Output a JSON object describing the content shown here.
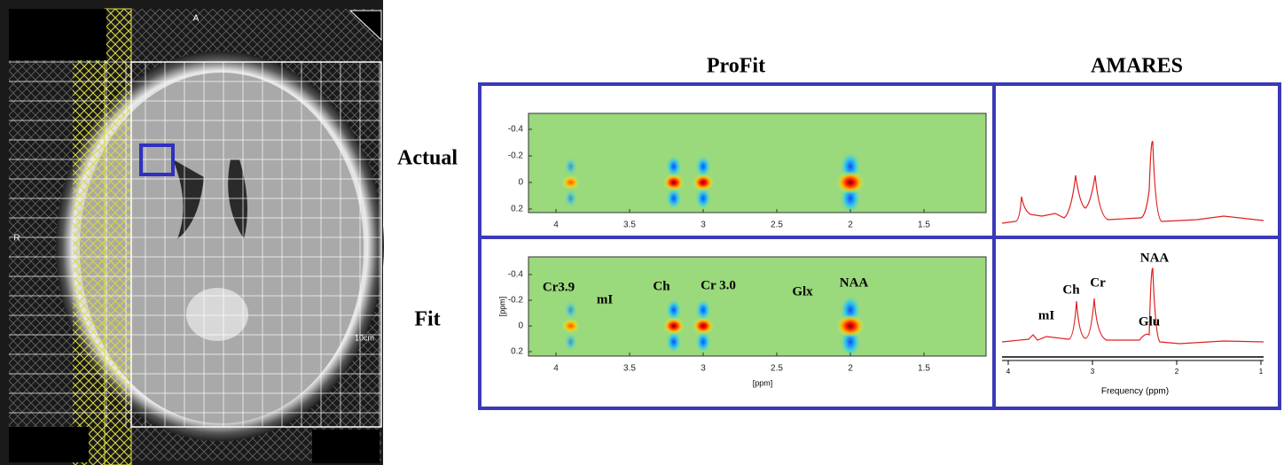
{
  "mri": {
    "labels": {
      "anterior": "A",
      "right": "R",
      "scale": "10cm"
    }
  },
  "column_titles": [
    "ProFit",
    "AMARES"
  ],
  "row_labels": [
    "Actual",
    "Fit"
  ],
  "profit": {
    "x_ticks": [
      "4",
      "3.5",
      "3",
      "2.5",
      "2",
      "1.5"
    ],
    "y_ticks": [
      "-0.4",
      "-0.2",
      "0",
      "0.2"
    ],
    "x_label": "[ppm]",
    "y_label": "[ppm]",
    "peak_labels": [
      "Cr3.9",
      "mI",
      "Ch",
      "Cr 3.0",
      "Glx",
      "NAA"
    ]
  },
  "amares": {
    "peak_labels": [
      "mI",
      "Ch",
      "Cr",
      "Glu",
      "NAA"
    ],
    "x_ticks": [
      "4",
      "3",
      "2",
      "1"
    ],
    "x_label": "Frequency (ppm)"
  }
}
